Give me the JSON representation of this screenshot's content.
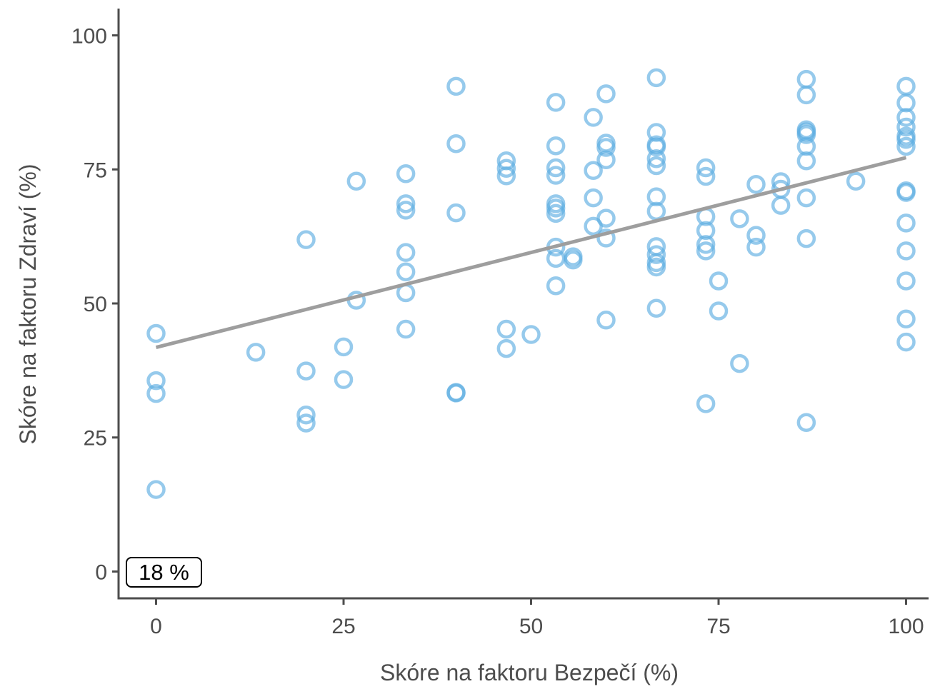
{
  "chart_data": {
    "type": "scatter",
    "xlabel": "Skóre na faktoru Bezpečí (%)",
    "ylabel": "Skóre na faktoru Zdraví (%)",
    "xlim": [
      -5,
      103
    ],
    "ylim": [
      -5,
      105
    ],
    "x_ticks": [
      0,
      25,
      50,
      75,
      100
    ],
    "x_tick_labels": [
      "0",
      "25",
      "50",
      "75",
      "100"
    ],
    "y_ticks": [
      0,
      25,
      50,
      75,
      100
    ],
    "y_tick_labels": [
      "0",
      "25",
      "50",
      "75",
      "100"
    ],
    "grid": false,
    "point_color": "#5DADE2",
    "trend_color": "#9E9E9E",
    "trend_line": {
      "x": [
        0,
        100
      ],
      "y": [
        41.8,
        77.2
      ]
    },
    "annotation": "18 %",
    "points": [
      {
        "x": 0,
        "y": 44.4
      },
      {
        "x": 0,
        "y": 35.6
      },
      {
        "x": 0,
        "y": 33.2
      },
      {
        "x": 0,
        "y": 15.3
      },
      {
        "x": 13.3,
        "y": 40.9
      },
      {
        "x": 20,
        "y": 61.9
      },
      {
        "x": 20,
        "y": 37.4
      },
      {
        "x": 20,
        "y": 29.2
      },
      {
        "x": 20,
        "y": 27.7
      },
      {
        "x": 25,
        "y": 41.9
      },
      {
        "x": 25,
        "y": 35.8
      },
      {
        "x": 26.7,
        "y": 72.8
      },
      {
        "x": 26.7,
        "y": 50.6
      },
      {
        "x": 33.3,
        "y": 74.2
      },
      {
        "x": 33.3,
        "y": 68.6
      },
      {
        "x": 33.3,
        "y": 67.4
      },
      {
        "x": 33.3,
        "y": 59.5
      },
      {
        "x": 33.3,
        "y": 55.9
      },
      {
        "x": 33.3,
        "y": 52.0
      },
      {
        "x": 33.3,
        "y": 45.2
      },
      {
        "x": 40,
        "y": 90.5
      },
      {
        "x": 40,
        "y": 79.8
      },
      {
        "x": 40,
        "y": 66.9
      },
      {
        "x": 40,
        "y": 33.3
      },
      {
        "x": 40,
        "y": 33.4
      },
      {
        "x": 46.7,
        "y": 76.6
      },
      {
        "x": 46.7,
        "y": 75.2
      },
      {
        "x": 46.7,
        "y": 73.8
      },
      {
        "x": 46.7,
        "y": 45.2
      },
      {
        "x": 46.7,
        "y": 41.6
      },
      {
        "x": 50,
        "y": 44.2
      },
      {
        "x": 53.3,
        "y": 87.5
      },
      {
        "x": 53.3,
        "y": 79.4
      },
      {
        "x": 53.3,
        "y": 75.3
      },
      {
        "x": 53.3,
        "y": 73.9
      },
      {
        "x": 53.3,
        "y": 68.6
      },
      {
        "x": 53.3,
        "y": 67.8
      },
      {
        "x": 53.3,
        "y": 66.8
      },
      {
        "x": 53.3,
        "y": 60.5
      },
      {
        "x": 53.3,
        "y": 58.4
      },
      {
        "x": 53.3,
        "y": 53.3
      },
      {
        "x": 55.6,
        "y": 58.7
      },
      {
        "x": 55.6,
        "y": 58.1
      },
      {
        "x": 58.3,
        "y": 84.7
      },
      {
        "x": 58.3,
        "y": 74.8
      },
      {
        "x": 58.3,
        "y": 69.7
      },
      {
        "x": 58.3,
        "y": 64.4
      },
      {
        "x": 60,
        "y": 89.1
      },
      {
        "x": 60,
        "y": 79.9
      },
      {
        "x": 60,
        "y": 79.1
      },
      {
        "x": 60,
        "y": 76.8
      },
      {
        "x": 60,
        "y": 65.9
      },
      {
        "x": 60,
        "y": 62.2
      },
      {
        "x": 60,
        "y": 46.9
      },
      {
        "x": 66.7,
        "y": 92.1
      },
      {
        "x": 66.7,
        "y": 81.9
      },
      {
        "x": 66.7,
        "y": 79.6
      },
      {
        "x": 66.7,
        "y": 79.2
      },
      {
        "x": 66.7,
        "y": 77.0
      },
      {
        "x": 66.7,
        "y": 75.7
      },
      {
        "x": 66.7,
        "y": 69.9
      },
      {
        "x": 66.7,
        "y": 67.2
      },
      {
        "x": 66.7,
        "y": 60.6
      },
      {
        "x": 66.7,
        "y": 59.1
      },
      {
        "x": 66.7,
        "y": 57.6
      },
      {
        "x": 66.7,
        "y": 56.8
      },
      {
        "x": 66.7,
        "y": 49.1
      },
      {
        "x": 73.3,
        "y": 75.3
      },
      {
        "x": 73.3,
        "y": 73.7
      },
      {
        "x": 73.3,
        "y": 66.2
      },
      {
        "x": 73.3,
        "y": 63.6
      },
      {
        "x": 73.3,
        "y": 61.0
      },
      {
        "x": 73.3,
        "y": 59.8
      },
      {
        "x": 73.3,
        "y": 31.3
      },
      {
        "x": 75,
        "y": 54.2
      },
      {
        "x": 75,
        "y": 48.6
      },
      {
        "x": 77.8,
        "y": 65.8
      },
      {
        "x": 77.8,
        "y": 38.8
      },
      {
        "x": 80,
        "y": 72.2
      },
      {
        "x": 80,
        "y": 62.7
      },
      {
        "x": 80,
        "y": 60.5
      },
      {
        "x": 83.3,
        "y": 72.7
      },
      {
        "x": 83.3,
        "y": 71.3
      },
      {
        "x": 83.3,
        "y": 68.3
      },
      {
        "x": 86.7,
        "y": 91.8
      },
      {
        "x": 86.7,
        "y": 88.9
      },
      {
        "x": 86.7,
        "y": 82.4
      },
      {
        "x": 86.7,
        "y": 82.0
      },
      {
        "x": 86.7,
        "y": 81.5
      },
      {
        "x": 86.7,
        "y": 79.3
      },
      {
        "x": 86.7,
        "y": 76.6
      },
      {
        "x": 86.7,
        "y": 69.7
      },
      {
        "x": 86.7,
        "y": 62.1
      },
      {
        "x": 86.7,
        "y": 27.8
      },
      {
        "x": 93.3,
        "y": 72.8
      },
      {
        "x": 100,
        "y": 90.5
      },
      {
        "x": 100,
        "y": 87.4
      },
      {
        "x": 100,
        "y": 84.7
      },
      {
        "x": 100,
        "y": 82.9
      },
      {
        "x": 100,
        "y": 81.2
      },
      {
        "x": 100,
        "y": 80.6
      },
      {
        "x": 100,
        "y": 79.3
      },
      {
        "x": 100,
        "y": 71.0
      },
      {
        "x": 100,
        "y": 70.7
      },
      {
        "x": 100,
        "y": 65.0
      },
      {
        "x": 100,
        "y": 59.8
      },
      {
        "x": 100,
        "y": 54.2
      },
      {
        "x": 100,
        "y": 47.1
      },
      {
        "x": 100,
        "y": 42.8
      }
    ]
  }
}
